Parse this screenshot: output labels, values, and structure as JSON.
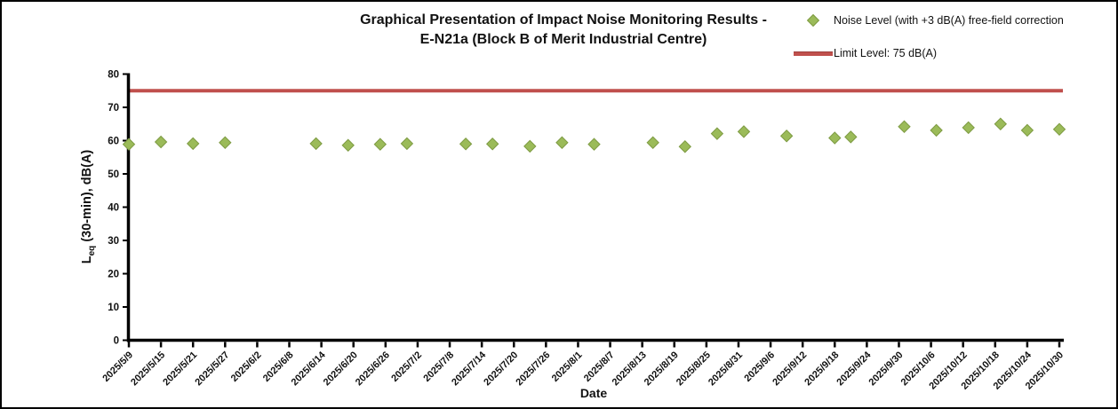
{
  "window": {
    "kind": "embedded-chart",
    "background": "#ffffff",
    "border_color": "#000000"
  },
  "colors": {
    "marker_fill": "#9BBB59",
    "marker_edge": "#7E9B43",
    "limit_line": "#C0504D",
    "axis": "#000000",
    "text": "#111111"
  },
  "chart_data": {
    "type": "scatter",
    "title": [
      "Graphical Presentation of Impact Noise Monitoring Results -",
      "E-N21a (Block B of Merit Industrial Centre)"
    ],
    "xlabel": "Date",
    "ylabel": {
      "main": "L",
      "sub": "eq",
      "rest": " (30-min), dB(A)"
    },
    "ylim": [
      0,
      80
    ],
    "y_ticks": [
      0,
      10,
      20,
      30,
      40,
      50,
      60,
      70,
      80
    ],
    "x_start_date": "2025/5/9",
    "x_end_date": "2025/10/30",
    "x_tick_interval_days": 6,
    "x_tick_labels": [
      "2025/5/9",
      "2025/5/15",
      "2025/5/21",
      "2025/5/27",
      "2025/6/2",
      "2025/6/8",
      "2025/6/14",
      "2025/6/20",
      "2025/6/26",
      "2025/7/2",
      "2025/7/8",
      "2025/7/14",
      "2025/7/20",
      "2025/7/26",
      "2025/8/1",
      "2025/8/7",
      "2025/8/13",
      "2025/8/19",
      "2025/8/25",
      "2025/8/31",
      "2025/9/6",
      "2025/9/12",
      "2025/9/18",
      "2025/9/24",
      "2025/9/30",
      "2025/10/6",
      "2025/10/12",
      "2025/10/18",
      "2025/10/24",
      "2025/10/30"
    ],
    "grid": false,
    "legend_position": "top-right",
    "series": [
      {
        "name": "Noise Level (with +3 dB(A) free-field correction",
        "type": "scatter",
        "marker": "diamond",
        "color": "#9BBB59",
        "points": [
          {
            "date": "2025/5/9",
            "value": 58.9
          },
          {
            "date": "2025/5/15",
            "value": 59.6
          },
          {
            "date": "2025/5/21",
            "value": 59.1
          },
          {
            "date": "2025/5/27",
            "value": 59.4
          },
          {
            "date": "2025/6/13",
            "value": 59.1
          },
          {
            "date": "2025/6/19",
            "value": 58.6
          },
          {
            "date": "2025/6/25",
            "value": 58.9
          },
          {
            "date": "2025/6/30",
            "value": 59.1
          },
          {
            "date": "2025/7/11",
            "value": 59.0
          },
          {
            "date": "2025/7/16",
            "value": 59.0
          },
          {
            "date": "2025/7/23",
            "value": 58.3
          },
          {
            "date": "2025/7/29",
            "value": 59.4
          },
          {
            "date": "2025/8/4",
            "value": 58.9
          },
          {
            "date": "2025/8/15",
            "value": 59.4
          },
          {
            "date": "2025/8/21",
            "value": 58.2
          },
          {
            "date": "2025/8/27",
            "value": 62.1
          },
          {
            "date": "2025/9/1",
            "value": 62.7
          },
          {
            "date": "2025/9/9",
            "value": 61.4
          },
          {
            "date": "2025/9/18",
            "value": 60.8
          },
          {
            "date": "2025/9/21",
            "value": 61.1
          },
          {
            "date": "2025/10/1",
            "value": 64.2
          },
          {
            "date": "2025/10/7",
            "value": 63.1
          },
          {
            "date": "2025/10/13",
            "value": 63.9
          },
          {
            "date": "2025/10/19",
            "value": 65.0
          },
          {
            "date": "2025/10/24",
            "value": 63.1
          },
          {
            "date": "2025/10/30",
            "value": 63.4
          }
        ]
      },
      {
        "name": "Limit Level: 75 dB(A)",
        "type": "limit-line",
        "color": "#C0504D",
        "value": 75
      }
    ]
  }
}
